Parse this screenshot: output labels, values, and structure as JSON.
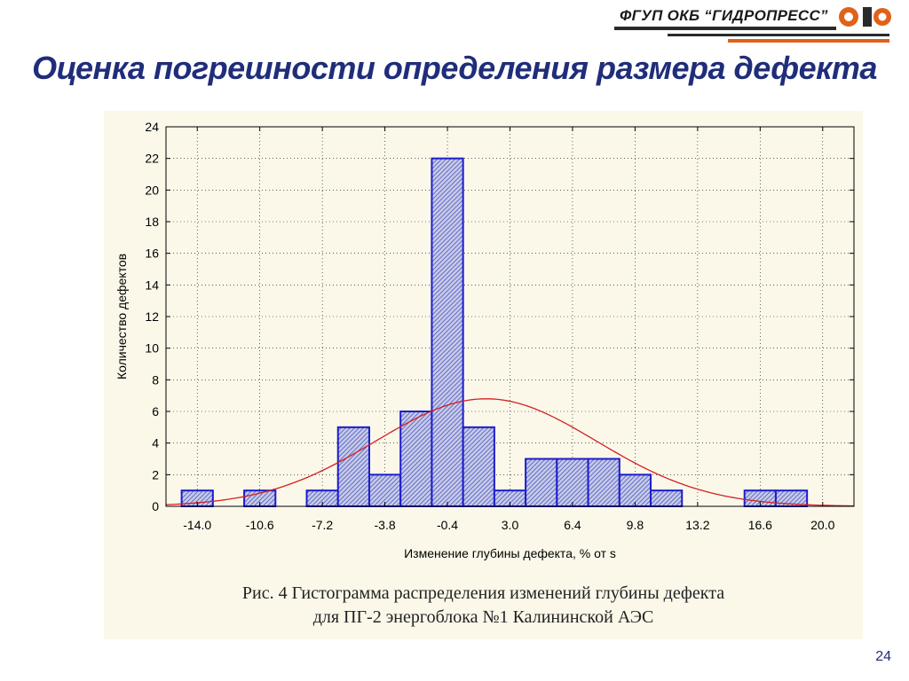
{
  "header": {
    "logo_text": "ФГУП ОКБ “ГИДРОПРЕСС”",
    "title": "Оценка погрешности определения размера дефекта"
  },
  "chart_data": {
    "type": "bar",
    "subtype": "histogram",
    "xlabel": "Изменение глубины дефекта, % от s",
    "ylabel": "Количество дефектов",
    "ylim": [
      0,
      24
    ],
    "yticks": [
      "0",
      "2",
      "4",
      "6",
      "8",
      "10",
      "12",
      "14",
      "16",
      "18",
      "20",
      "22",
      "24"
    ],
    "xlim": [
      -15.7,
      21.7
    ],
    "xticks": [
      "-14.0",
      "-10.6",
      "-7.2",
      "-3.8",
      "-0.4",
      "3.0",
      "6.4",
      "9.8",
      "13.2",
      "16.6",
      "20.0"
    ],
    "bin_width": 1.7,
    "bin_centers": [
      -14.0,
      -12.3,
      -10.6,
      -8.9,
      -7.2,
      -5.5,
      -3.8,
      -2.1,
      -0.4,
      1.3,
      3.0,
      4.7,
      6.4,
      8.1,
      9.8,
      11.5,
      13.2,
      14.9,
      16.6,
      18.3,
      20.0
    ],
    "values": [
      1,
      0,
      1,
      0,
      1,
      5,
      2,
      6,
      22,
      5,
      1,
      3,
      3,
      3,
      2,
      1,
      0,
      0,
      1,
      1,
      0
    ],
    "grid": true,
    "fitted_curve": {
      "type": "normal",
      "mean": 1.7,
      "peak": 6.8,
      "sigma": 6.0,
      "color": "#d42020"
    },
    "colors": {
      "bar_edge": "#1c1ccc",
      "bar_fill": "#c8cce8",
      "hatch": "#6870c8"
    }
  },
  "caption": {
    "line1": "Рис. 4 Гистограмма распределения изменений глубины дефекта",
    "line2": "для ПГ-2 энергоблока №1 Калининской АЭС"
  },
  "page_number": "24"
}
